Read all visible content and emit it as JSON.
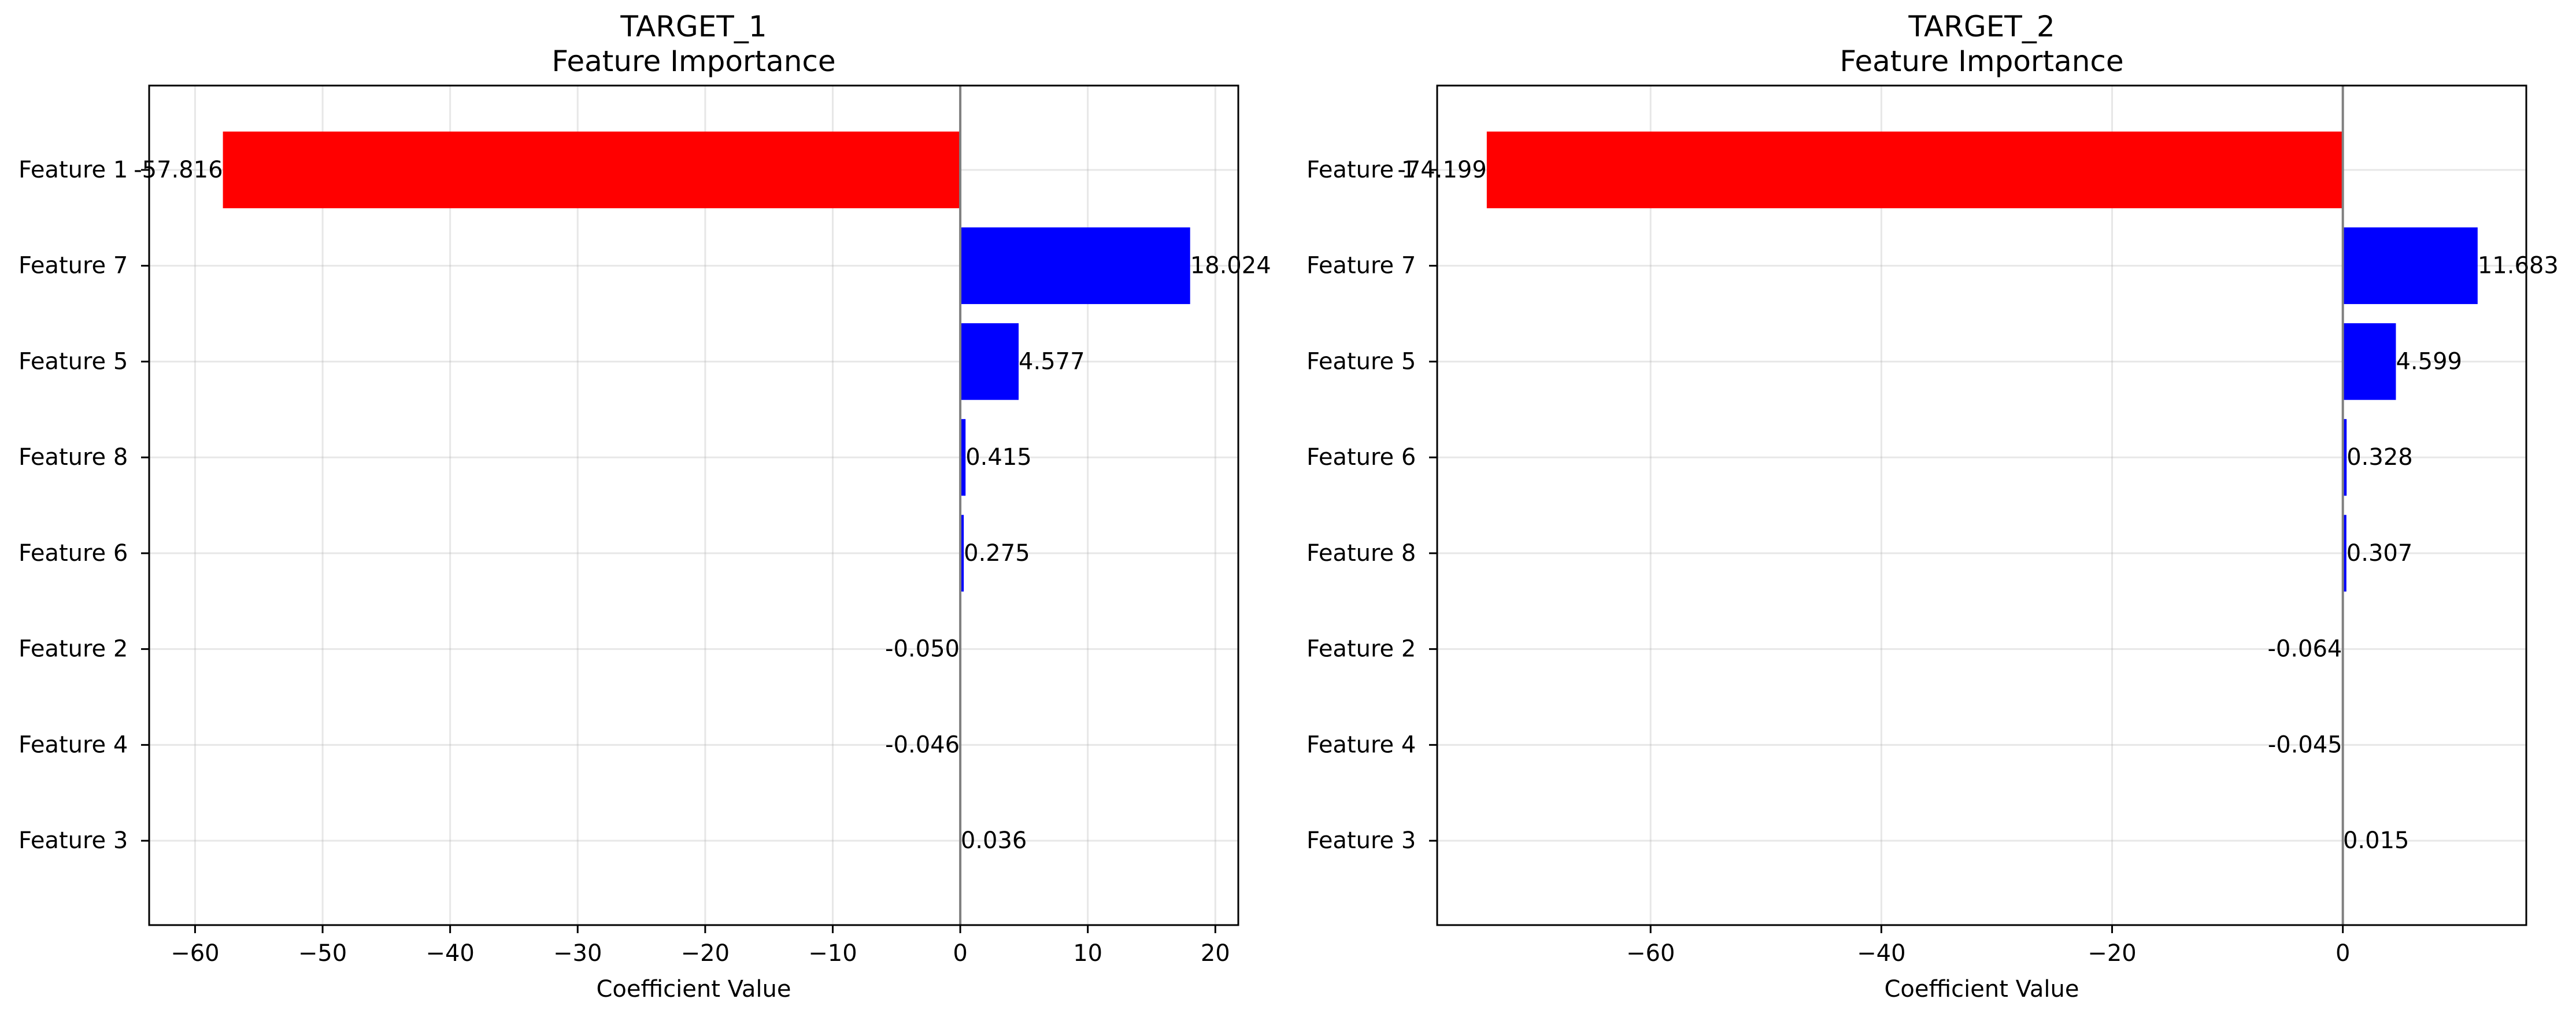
{
  "chart_data": [
    {
      "type": "bar",
      "orientation": "horizontal",
      "title": "TARGET_1\nFeature Importance",
      "xlabel": "Coefficient Value",
      "ylabel": "",
      "xlim": [
        -63.6,
        21.8
      ],
      "xticks": [
        -60,
        -50,
        -40,
        -30,
        -20,
        -10,
        0,
        10,
        20
      ],
      "xtick_labels": [
        "−60",
        "−50",
        "−40",
        "−30",
        "−20",
        "−10",
        "0",
        "10",
        "20"
      ],
      "grid": true,
      "categories": [
        "Feature 1",
        "Feature 7",
        "Feature 5",
        "Feature 8",
        "Feature 6",
        "Feature 2",
        "Feature 4",
        "Feature 3"
      ],
      "values": [
        -57.816,
        18.024,
        4.577,
        0.415,
        0.275,
        -0.05,
        -0.046,
        0.036
      ],
      "value_labels": [
        "-57.816",
        "18.024",
        "4.577",
        "0.415",
        "0.275",
        "-0.050",
        "-0.046",
        "0.036"
      ],
      "positive_color": "#0000ff",
      "negative_color": "#ff0000"
    },
    {
      "type": "bar",
      "orientation": "horizontal",
      "title": "TARGET_2\nFeature Importance",
      "xlabel": "Coefficient Value",
      "ylabel": "",
      "xlim": [
        -78.5,
        15.9
      ],
      "xticks": [
        -60,
        -40,
        -20,
        0
      ],
      "xtick_labels": [
        "−60",
        "−40",
        "−20",
        "0"
      ],
      "grid": true,
      "categories": [
        "Feature 1",
        "Feature 7",
        "Feature 5",
        "Feature 6",
        "Feature 8",
        "Feature 2",
        "Feature 4",
        "Feature 3"
      ],
      "values": [
        -74.199,
        11.683,
        4.599,
        0.328,
        0.307,
        -0.064,
        -0.045,
        0.015
      ],
      "value_labels": [
        "-74.199",
        "11.683",
        "4.599",
        "0.328",
        "0.307",
        "-0.064",
        "-0.045",
        "0.015"
      ],
      "positive_color": "#0000ff",
      "negative_color": "#ff0000"
    }
  ]
}
